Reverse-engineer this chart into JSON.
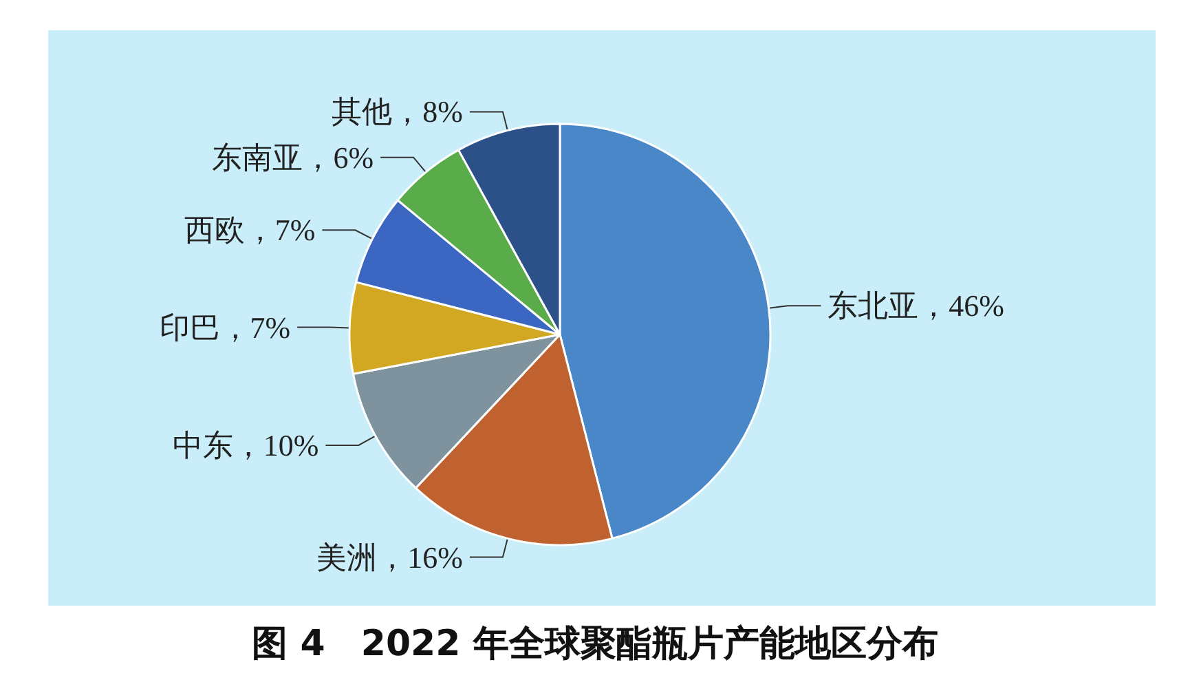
{
  "chart_data": {
    "type": "pie",
    "title": "图 4　2022 年全球聚酯瓶片产能地区分布",
    "categories": [
      "东北亚",
      "美洲",
      "中东",
      "印巴",
      "西欧",
      "东南亚",
      "其他"
    ],
    "values": [
      46,
      16,
      10,
      7,
      7,
      6,
      8
    ],
    "colors": [
      "#4a87c9",
      "#c0622f",
      "#7f939f",
      "#d2a722",
      "#3b66c2",
      "#5aac4b",
      "#2c5088"
    ],
    "value_labels": [
      "，46%",
      "，16%",
      "，10%",
      "，7%",
      "，7%",
      "，6%",
      "，8%"
    ]
  }
}
